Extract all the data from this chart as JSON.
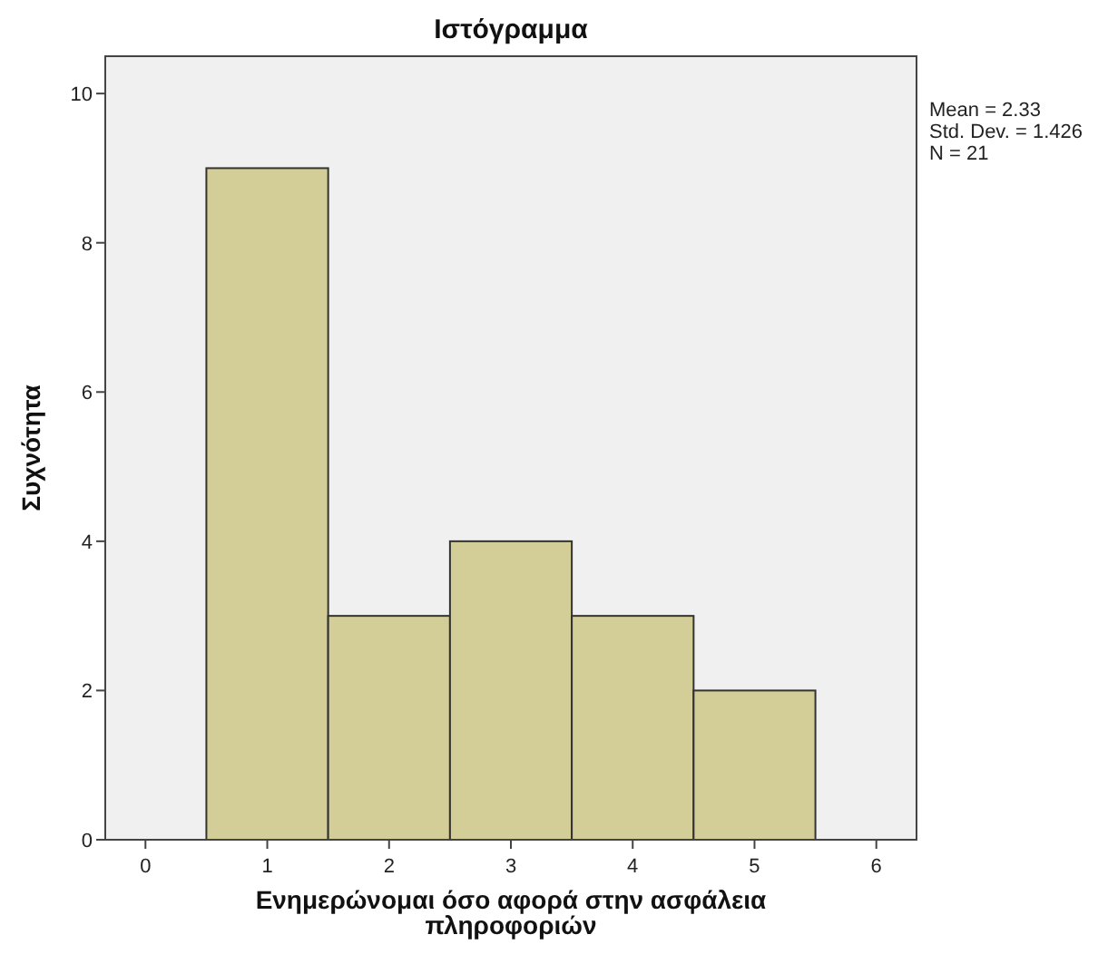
{
  "chart_data": {
    "type": "histogram",
    "title": "Ιστόγραμμα",
    "xlabel": "Ενημερώνομαι όσο αφορά στην ασφάλεια πληροφοριών",
    "ylabel": "Συχνότητα",
    "bins": [
      0.5,
      1.5,
      2.5,
      3.5,
      4.5,
      5.5
    ],
    "values": [
      9,
      3,
      4,
      3,
      2
    ],
    "color": "#d3ce97",
    "xlim": [
      -0.33,
      6.33
    ],
    "xticks": [
      0,
      1,
      2,
      3,
      4,
      5,
      6
    ],
    "ylim": [
      0,
      10.5
    ],
    "yticks": [
      0,
      2,
      4,
      6,
      8,
      10
    ],
    "grid": false,
    "annotations": [
      "Mean = 2.33",
      "Std. Dev. = 1.426",
      "N = 21"
    ]
  }
}
